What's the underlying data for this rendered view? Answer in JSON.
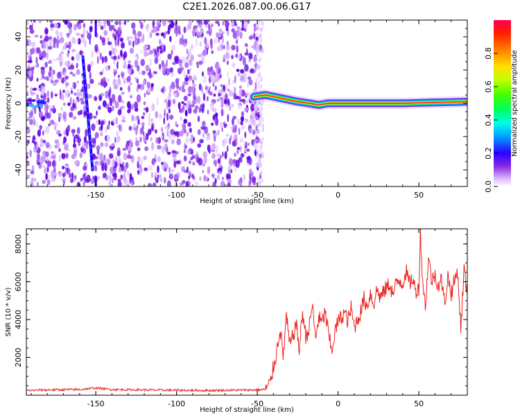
{
  "title": "C2E1.2026.087.00.06.G17",
  "colors": {
    "snr_line": "#e8221e",
    "axis": "#000000",
    "occult_purple": "#8a2be2",
    "occult_dark": "#5a00e0"
  },
  "colorbar": {
    "label": "Normalized spectral amplitude",
    "ticks": [
      "0.0",
      "0.2",
      "0.4",
      "0.6",
      "0.8"
    ],
    "tick_values": [
      0.0,
      0.2,
      0.4,
      0.6,
      0.8
    ],
    "range": [
      0,
      1
    ]
  },
  "chart_data": [
    {
      "type": "heatmap",
      "title": "C2E1.2026.087.00.06.G17",
      "xlabel": "Height of straight line (km)",
      "ylabel": "Frequency (Hz)",
      "xlim": [
        -193,
        80
      ],
      "ylim": [
        -50,
        50
      ],
      "xticks": [
        -150,
        -100,
        -50,
        0,
        50
      ],
      "yticks": [
        -40,
        -20,
        0,
        20,
        40
      ],
      "xtick_labels": [
        "-150",
        "-100",
        "-50",
        "0",
        "50"
      ],
      "ytick_labels": [
        "-40",
        "-20",
        "0",
        "20",
        "40"
      ],
      "noise_region_x": [
        -193,
        -48
      ],
      "tone_path": [
        [
          -52,
          4
        ],
        [
          -45,
          5
        ],
        [
          -40,
          4
        ],
        [
          -35,
          3
        ],
        [
          -25,
          1
        ],
        [
          -18,
          0
        ],
        [
          -12,
          -1
        ],
        [
          -6,
          0
        ],
        [
          0,
          0
        ],
        [
          10,
          0
        ],
        [
          20,
          0
        ],
        [
          40,
          0
        ],
        [
          60,
          0.5
        ],
        [
          80,
          1
        ]
      ],
      "diagonal_streak": [
        [
          -158,
          28
        ],
        [
          -152,
          -40
        ]
      ],
      "vertical_streak_x": -150
    },
    {
      "type": "line",
      "xlabel": "Height of straight line (km)",
      "ylabel": "SNR (10 * v/v)",
      "xlim": [
        -193,
        80
      ],
      "ylim": [
        0,
        8800
      ],
      "xticks": [
        -150,
        -100,
        -50,
        0,
        50
      ],
      "yticks": [
        2000,
        4000,
        6000,
        8000
      ],
      "xtick_labels": [
        "-150",
        "-100",
        "-50",
        "0",
        "50"
      ],
      "ytick_labels": [
        "2000",
        "4000",
        "6000",
        "8000"
      ],
      "series": [
        {
          "name": "SNR",
          "x": [
            -193,
            -180,
            -160,
            -150,
            -140,
            -120,
            -100,
            -80,
            -60,
            -50,
            -45,
            -42,
            -40,
            -38,
            -36,
            -34,
            -32,
            -30,
            -28,
            -26,
            -24,
            -22,
            -20,
            -18,
            -16,
            -14,
            -12,
            -10,
            -8,
            -6,
            -4,
            -2,
            0,
            2,
            4,
            6,
            8,
            10,
            12,
            14,
            16,
            18,
            20,
            22,
            24,
            26,
            28,
            30,
            32,
            34,
            36,
            38,
            40,
            42,
            44,
            46,
            48,
            50,
            51,
            52,
            54,
            56,
            58,
            60,
            62,
            64,
            66,
            68,
            70,
            72,
            74,
            76,
            78,
            80
          ],
          "y": [
            250,
            280,
            300,
            380,
            300,
            280,
            260,
            250,
            270,
            280,
            300,
            600,
            1500,
            2300,
            3600,
            2000,
            4200,
            2600,
            3100,
            3800,
            2400,
            4400,
            3100,
            3500,
            4800,
            3000,
            4100,
            3800,
            4400,
            3300,
            2300,
            3300,
            3900,
            4100,
            4400,
            3900,
            4600,
            3600,
            4000,
            4400,
            5100,
            4700,
            5400,
            4800,
            5600,
            5200,
            5400,
            5700,
            5900,
            5300,
            5900,
            6100,
            5900,
            6600,
            5900,
            6200,
            5500,
            5700,
            8800,
            6500,
            4600,
            7300,
            6000,
            6400,
            5800,
            6100,
            4800,
            6300,
            5400,
            6000,
            6600,
            3500,
            6700,
            5200
          ]
        }
      ]
    }
  ]
}
